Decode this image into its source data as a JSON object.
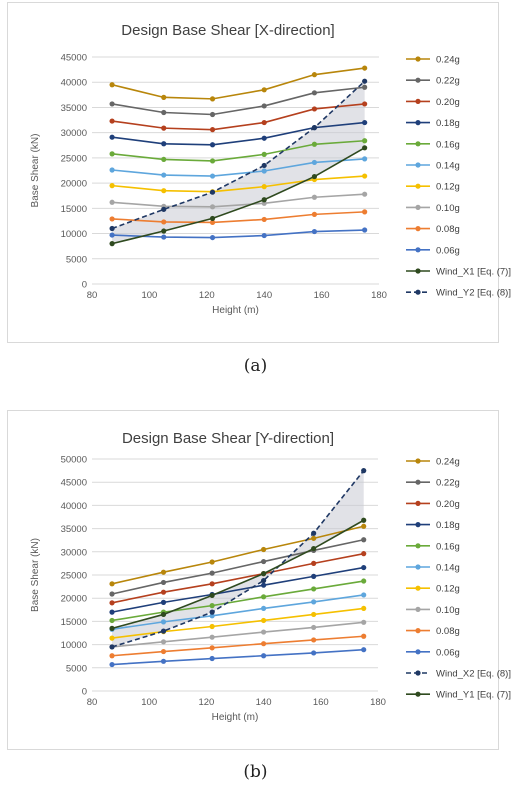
{
  "captions": [
    "(a)",
    "(b)"
  ],
  "chart_data": [
    {
      "type": "line",
      "title": "Design Base Shear  [X-direction]",
      "xlabel": "Height (m)",
      "ylabel": "Base Shear (kN)",
      "xlim": [
        80,
        180
      ],
      "ylim": [
        0,
        45000
      ],
      "xticks": [
        80,
        100,
        120,
        140,
        160,
        180
      ],
      "yticks": [
        0,
        5000,
        10000,
        15000,
        20000,
        25000,
        30000,
        35000,
        40000,
        45000
      ],
      "x": [
        87,
        105,
        122,
        140,
        157.5,
        175
      ],
      "grid": true,
      "legend_position": "right",
      "series": [
        {
          "name": "0.24g",
          "color": "#b8860b",
          "dashed": false,
          "values": [
            39500,
            37000,
            36700,
            38500,
            41500,
            42800
          ]
        },
        {
          "name": "0.22g",
          "color": "#666666",
          "dashed": false,
          "values": [
            35700,
            34000,
            33600,
            35300,
            37900,
            39000
          ]
        },
        {
          "name": "0.20g",
          "color": "#b5401e",
          "dashed": false,
          "values": [
            32300,
            30900,
            30600,
            32000,
            34700,
            35700
          ]
        },
        {
          "name": "0.18g",
          "color": "#1f3f7a",
          "dashed": false,
          "values": [
            29100,
            27800,
            27600,
            28900,
            31000,
            32000
          ]
        },
        {
          "name": "0.16g",
          "color": "#6aaa3a",
          "dashed": false,
          "values": [
            25800,
            24700,
            24400,
            25700,
            27700,
            28400
          ]
        },
        {
          "name": "0.14g",
          "color": "#5ea6dd",
          "dashed": false,
          "values": [
            22600,
            21600,
            21400,
            22400,
            24100,
            24800
          ]
        },
        {
          "name": "0.12g",
          "color": "#f5c000",
          "dashed": false,
          "values": [
            19500,
            18500,
            18300,
            19300,
            20700,
            21400
          ]
        },
        {
          "name": "0.10g",
          "color": "#a5a5a5",
          "dashed": false,
          "values": [
            16200,
            15400,
            15300,
            16000,
            17200,
            17800
          ]
        },
        {
          "name": "0.08g",
          "color": "#ed7d31",
          "dashed": false,
          "values": [
            12900,
            12300,
            12200,
            12800,
            13800,
            14300
          ]
        },
        {
          "name": "0.06g",
          "color": "#4472c4",
          "dashed": false,
          "values": [
            9700,
            9300,
            9200,
            9600,
            10400,
            10700
          ]
        },
        {
          "name": "Wind_X1 [Eq. (7)]",
          "color": "#2f4a1f",
          "dashed": false,
          "values": [
            8000,
            10500,
            13000,
            16700,
            21300,
            27000
          ]
        },
        {
          "name": "Wind_Y2 [Eq. (8)]",
          "color": "#1f3864",
          "dashed": true,
          "values": [
            11000,
            14800,
            18200,
            23500,
            31000,
            40200
          ]
        }
      ]
    },
    {
      "type": "line",
      "title": "Design Base Shear  [Y-direction]",
      "xlabel": "Height (m)",
      "ylabel": "Base Shear (kN)",
      "xlim": [
        80,
        180
      ],
      "ylim": [
        0,
        50000
      ],
      "xticks": [
        80,
        100,
        120,
        140,
        160,
        180
      ],
      "yticks": [
        0,
        5000,
        10000,
        15000,
        20000,
        25000,
        30000,
        35000,
        40000,
        45000,
        50000
      ],
      "x": [
        87,
        105,
        122,
        140,
        157.5,
        175
      ],
      "grid": true,
      "legend_position": "right",
      "series": [
        {
          "name": "0.24g",
          "color": "#b8860b",
          "dashed": false,
          "values": [
            23100,
            25600,
            27800,
            30500,
            32900,
            35500
          ]
        },
        {
          "name": "0.22g",
          "color": "#666666",
          "dashed": false,
          "values": [
            20900,
            23400,
            25400,
            27900,
            30300,
            32600
          ]
        },
        {
          "name": "0.20g",
          "color": "#b5401e",
          "dashed": false,
          "values": [
            19000,
            21300,
            23100,
            25300,
            27500,
            29600
          ]
        },
        {
          "name": "0.18g",
          "color": "#1f3f7a",
          "dashed": false,
          "values": [
            17000,
            19100,
            20800,
            22800,
            24700,
            26600
          ]
        },
        {
          "name": "0.16g",
          "color": "#6aaa3a",
          "dashed": false,
          "values": [
            15200,
            17000,
            18400,
            20300,
            22000,
            23700
          ]
        },
        {
          "name": "0.14g",
          "color": "#5ea6dd",
          "dashed": false,
          "values": [
            13300,
            14900,
            16200,
            17800,
            19200,
            20700
          ]
        },
        {
          "name": "0.12g",
          "color": "#f5c000",
          "dashed": false,
          "values": [
            11400,
            12800,
            13900,
            15200,
            16500,
            17800
          ]
        },
        {
          "name": "0.10g",
          "color": "#a5a5a5",
          "dashed": false,
          "values": [
            9500,
            10600,
            11600,
            12700,
            13700,
            14800
          ]
        },
        {
          "name": "0.08g",
          "color": "#ed7d31",
          "dashed": false,
          "values": [
            7600,
            8500,
            9300,
            10200,
            11000,
            11800
          ]
        },
        {
          "name": "0.06g",
          "color": "#4472c4",
          "dashed": false,
          "values": [
            5700,
            6400,
            7000,
            7600,
            8200,
            8900
          ]
        },
        {
          "name": "Wind_X2 [Eq. (8)]",
          "color": "#1f3864",
          "dashed": true,
          "values": [
            9500,
            12900,
            17000,
            23800,
            34000,
            47500
          ]
        },
        {
          "name": "Wind_Y1 [Eq. (7)]",
          "color": "#2f4a1f",
          "dashed": false,
          "values": [
            13500,
            16500,
            20600,
            25300,
            30700,
            36800
          ]
        }
      ]
    }
  ]
}
